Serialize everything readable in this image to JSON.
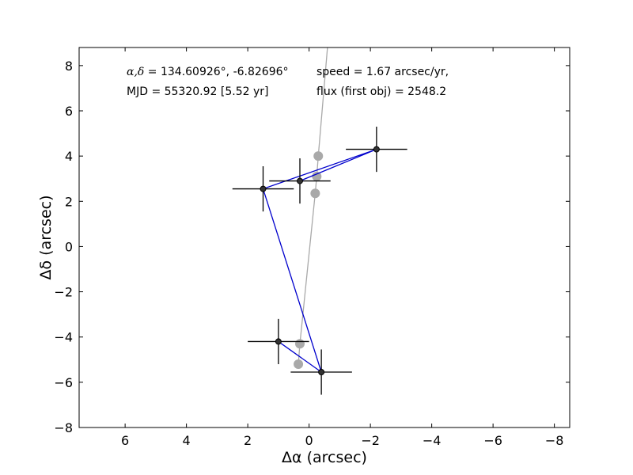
{
  "chart_data": {
    "type": "scatter",
    "title": "",
    "xlabel": "Δα (arcsec)",
    "ylabel": "Δδ (arcsec)",
    "xlim": [
      7.5,
      -8.5
    ],
    "ylim": [
      -8,
      8.8
    ],
    "x_inverted": true,
    "xticks": [
      6,
      4,
      2,
      0,
      -2,
      -4,
      -6,
      -8
    ],
    "xtick_labels": [
      "6",
      "4",
      "2",
      "0",
      "−2",
      "−4",
      "−6",
      "−8"
    ],
    "yticks": [
      8,
      6,
      4,
      2,
      0,
      -2,
      -4,
      -6,
      -8
    ],
    "ytick_labels": [
      "8",
      "6",
      "4",
      "2",
      "0",
      "−2",
      "−4",
      "−6",
      "−8"
    ],
    "grid": false,
    "annotations": {
      "coord_symbols": "α,δ",
      "coord_values": " = 134.60926°, -6.82696°",
      "mjd": "MJD = 55320.92 [5.52 yr]",
      "speed": "speed = 1.67 arcsec/yr,",
      "flux": "flux (first obj) = 2548.2"
    },
    "series": [
      {
        "role": "observations",
        "color": "#0000cc",
        "marker_color": "#333333",
        "points": [
          {
            "x": 0.3,
            "y": 2.9,
            "xerr": 1.0,
            "yerr": 1.0
          },
          {
            "x": 1.5,
            "y": 2.55,
            "xerr": 1.0,
            "yerr": 1.0
          },
          {
            "x": -2.2,
            "y": 4.3,
            "xerr": 1.0,
            "yerr": 1.0
          },
          {
            "x": 1.0,
            "y": -4.2,
            "xerr": 1.0,
            "yerr": 1.0
          },
          {
            "x": -0.4,
            "y": -5.55,
            "xerr": 1.0,
            "yerr": 1.0
          }
        ],
        "line_order": [
          0,
          2,
          1,
          4,
          3
        ]
      },
      {
        "role": "model",
        "color": "#a9a9a9",
        "points": [
          {
            "x": 0.35,
            "y": -5.2
          },
          {
            "x": 0.3,
            "y": -4.3
          },
          {
            "x": -0.2,
            "y": 2.35
          },
          {
            "x": -0.25,
            "y": 3.1
          },
          {
            "x": -0.3,
            "y": 4.0
          }
        ],
        "line_to": {
          "x": -0.6,
          "y": 8.8
        }
      }
    ]
  }
}
